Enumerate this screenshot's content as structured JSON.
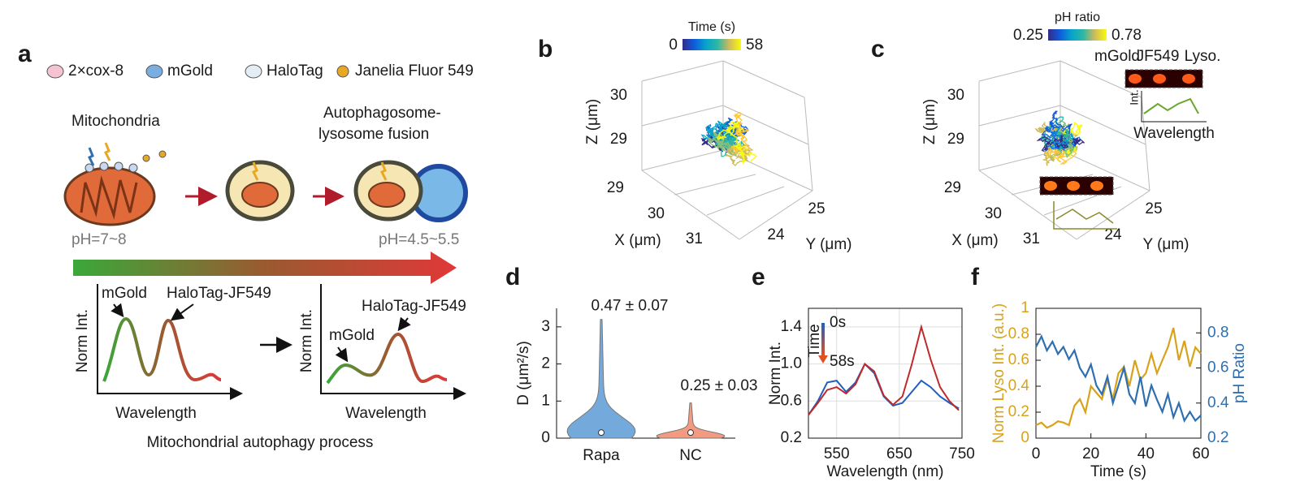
{
  "panel_labels": [
    "a",
    "b",
    "c",
    "d",
    "e",
    "f"
  ],
  "diagram": {
    "legend": [
      "2×cox-8",
      "mGold",
      "HaloTag",
      "Janelia Fluor 549"
    ],
    "stage_labels": [
      "Mitochondria",
      "Autophagosome-",
      "lysosome fusion"
    ],
    "ph_labels": [
      "pH=7~8",
      "pH=4.5~5.5"
    ],
    "spectra": [
      {
        "peak_labels": [
          "mGold",
          "HaloTag-JF549"
        ],
        "y_label": "Norm Int.",
        "x_label": "Wavelength"
      },
      {
        "peak_labels": [
          "mGold",
          "HaloTag-JF549"
        ],
        "y_label": "Norm Int.",
        "x_label": "Wavelength"
      }
    ],
    "caption": "Mitochondrial autophagy process"
  },
  "trajectories": [
    {
      "colorbar_title": "Time (s)",
      "colorbar_labels": [
        "0",
        "58"
      ],
      "z_label": "Z (μm)",
      "x_label": "X (μm)",
      "y_label": "Y (μm)",
      "z_ticks": [
        "30",
        "29"
      ],
      "x_ticks": [
        "29",
        "30",
        "31"
      ],
      "y_ticks": [
        "25",
        "24"
      ]
    },
    {
      "colorbar_title": "pH ratio",
      "colorbar_labels": [
        "0.25",
        "0.78"
      ],
      "z_label": "Z (μm)",
      "x_label": "X (μm)",
      "y_label": "Y (μm)",
      "z_ticks": [
        "30",
        "29"
      ],
      "x_ticks": [
        "29",
        "30",
        "31"
      ],
      "y_ticks": [
        "25",
        "24"
      ],
      "inset_labels": [
        "mGold",
        "JF549",
        "Lyso.",
        "Int.",
        "Wavelength"
      ]
    }
  ],
  "chart_data": [
    {
      "type": "violin",
      "y_label": "D (μm²/s)",
      "categories": [
        "Rapa",
        "NC"
      ],
      "max_values": [
        3.2,
        0.95
      ],
      "median_values": [
        0.15,
        0.15
      ],
      "annotations": [
        "0.47 ± 0.07",
        "0.25 ± 0.03"
      ],
      "colors": [
        "#5b9bd5",
        "#f08a6c"
      ],
      "ylim": [
        0,
        3.5
      ],
      "yticks": [
        0,
        1,
        2,
        3
      ]
    },
    {
      "type": "line",
      "x_label": "Wavelength (nm)",
      "y_label": "Norm Int.",
      "legend_title": "Time",
      "x": [
        505,
        520,
        535,
        550,
        565,
        580,
        595,
        610,
        625,
        640,
        655,
        670,
        685,
        700,
        715,
        730,
        745
      ],
      "series": [
        {
          "name": "0s",
          "color": "#1f5fbf",
          "values": [
            0.45,
            0.6,
            0.8,
            0.82,
            0.7,
            0.8,
            1.0,
            0.9,
            0.65,
            0.55,
            0.58,
            0.7,
            0.82,
            0.75,
            0.65,
            0.58,
            0.52
          ]
        },
        {
          "name": "58s",
          "color": "#c0282a",
          "values": [
            0.45,
            0.58,
            0.72,
            0.75,
            0.68,
            0.78,
            1.0,
            0.92,
            0.66,
            0.56,
            0.65,
            1.0,
            1.4,
            1.05,
            0.75,
            0.6,
            0.5
          ]
        }
      ],
      "xlim": [
        505,
        750
      ],
      "xticks": [
        550,
        650,
        750
      ],
      "ylim": [
        0.2,
        1.6
      ],
      "yticks": [
        0.2,
        0.6,
        {
          "value": 1,
          "label": "1.0"
        },
        1.4
      ],
      "grid": true
    },
    {
      "type": "line",
      "x_label": "Time (s)",
      "y_label": "Norm Lyso Int. (a.u.)",
      "y2_label": "pH Ratio",
      "x": [
        0,
        2,
        4,
        6,
        8,
        10,
        12,
        14,
        16,
        18,
        20,
        22,
        24,
        26,
        28,
        30,
        32,
        34,
        36,
        38,
        40,
        42,
        44,
        46,
        48,
        50,
        52,
        54,
        56,
        58,
        60
      ],
      "series": [
        {
          "color": "#d8a21a",
          "values": [
            0.1,
            0.12,
            0.08,
            0.1,
            0.13,
            0.12,
            0.1,
            0.25,
            0.3,
            0.2,
            0.4,
            0.35,
            0.3,
            0.45,
            0.3,
            0.5,
            0.55,
            0.4,
            0.6,
            0.45,
            0.5,
            0.65,
            0.5,
            0.6,
            0.7,
            0.85,
            0.6,
            0.75,
            0.55,
            0.7,
            0.65
          ]
        },
        {
          "color": "#2f6fb0",
          "axis": "y2",
          "values": [
            0.72,
            0.78,
            0.7,
            0.75,
            0.68,
            0.72,
            0.65,
            0.7,
            0.6,
            0.55,
            0.62,
            0.5,
            0.45,
            0.55,
            0.4,
            0.5,
            0.6,
            0.45,
            0.4,
            0.55,
            0.38,
            0.5,
            0.42,
            0.35,
            0.45,
            0.32,
            0.4,
            0.3,
            0.35,
            0.3,
            0.33
          ]
        }
      ],
      "xlim": [
        0,
        60
      ],
      "xticks": [
        0,
        20,
        40,
        60
      ],
      "ylim": [
        0,
        1
      ],
      "yticks": [
        0,
        0.2,
        0.4,
        0.6,
        0.8,
        1
      ],
      "y2lim": [
        0.2,
        0.94
      ],
      "y2ticks": [
        0.2,
        0.4,
        0.6,
        0.8
      ],
      "grid": false
    }
  ]
}
